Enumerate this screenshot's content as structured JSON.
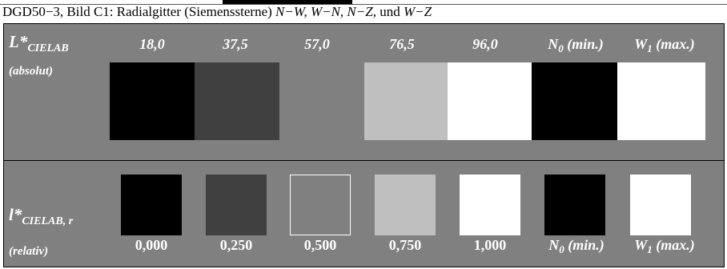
{
  "caption": {
    "prefix": "DGD50−3, Bild C1: Radialgitter (Siemenssterne) ",
    "series": "N−W, W−N, N−Z,",
    "conj": " und ",
    "last": "W−Z"
  },
  "left_labels": {
    "top_main": "L*",
    "top_sub": "CIELAB",
    "top_note": "(absolut)",
    "bottom_main": "l*",
    "bottom_sub": "CIELAB, r",
    "bottom_note": "(relativ)"
  },
  "top_values": [
    "18,0",
    "37,5",
    "57,0",
    "76,5",
    "96,0"
  ],
  "top_extremes": [
    {
      "main": "N",
      "sub": "0",
      "tail": " (min.)"
    },
    {
      "main": "W",
      "sub": "1",
      "tail": " (max.)"
    }
  ],
  "bottom_values": [
    "0,000",
    "0,250",
    "0,500",
    "0,750",
    "1,000"
  ],
  "bottom_extremes": [
    {
      "main": "N",
      "sub": "0",
      "tail": " (min.)"
    },
    {
      "main": "W",
      "sub": "1",
      "tail": " (max.)"
    }
  ],
  "colors": {
    "panel": "#808080",
    "absolute_swatches": [
      "#000000",
      "#404040",
      "#808080",
      "#bfbfbf",
      "#ffffff",
      "#000000",
      "#ffffff"
    ],
    "relative_swatches": [
      "#000000",
      "#404040",
      "#808080",
      "#bfbfbf",
      "#ffffff",
      "#000000",
      "#ffffff"
    ]
  }
}
